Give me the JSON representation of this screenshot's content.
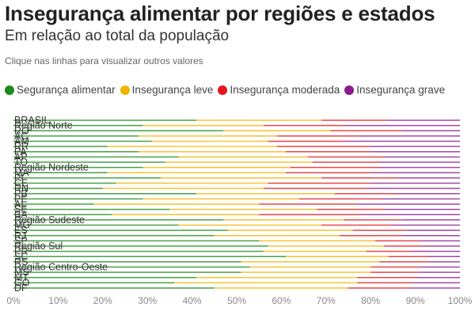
{
  "title": "Insegurança alimentar por regiões e estados",
  "subtitle": "Em relação ao total da população",
  "note": "Clique nas linhas para visualizar outros valores",
  "legend": [
    {
      "label": "Segurança alimentar",
      "color": "#1a8a1a"
    },
    {
      "label": "Insegurança leve",
      "color": "#f2b400"
    },
    {
      "label": "Insegurança moderada",
      "color": "#e4161b"
    },
    {
      "label": "Insegurança grave",
      "color": "#8a1a8e"
    }
  ],
  "chart_data": {
    "type": "bar",
    "stacked": true,
    "orientation": "horizontal",
    "xlim": [
      0,
      100
    ],
    "x_ticks": [
      "0%",
      "10%",
      "20%",
      "30%",
      "40%",
      "50%",
      "60%",
      "70%",
      "80%",
      "90%",
      "100%"
    ],
    "categories": [
      "BRASIL",
      "Região Norte",
      "RO",
      "AC",
      "AM",
      "RR",
      "PA",
      "AP",
      "TO",
      "Região Nordeste",
      "MA",
      "PI",
      "CE",
      "RN",
      "PB",
      "PE",
      "AL",
      "SE",
      "BA",
      "Região Sudeste",
      "MG",
      "ES",
      "RJ",
      "SP",
      "Região Sul",
      "PR",
      "SC",
      "RS",
      "Região Centro-Oeste",
      "MS",
      "MT",
      "GO",
      "DF"
    ],
    "series": [
      {
        "name": "Segurança alimentar",
        "color": "#1a8a1a",
        "values": [
          41,
          29,
          47,
          28,
          31,
          21,
          28,
          37,
          34,
          29,
          21,
          33,
          23,
          20,
          41,
          29,
          18,
          35,
          22,
          47,
          37,
          48,
          45,
          55,
          57,
          56,
          61,
          51,
          53,
          51,
          41,
          36,
          45
        ]
      },
      {
        "name": "Insegurança leve",
        "color": "#f2b400",
        "values": [
          28,
          27,
          24,
          31,
          26,
          38,
          33,
          29,
          33,
          33,
          40,
          36,
          34,
          36,
          31,
          35,
          37,
          33,
          33,
          27,
          32,
          28,
          28,
          26,
          26,
          23,
          23,
          31,
          27,
          29,
          36,
          41,
          30
        ]
      },
      {
        "name": "Insegurança moderada",
        "color": "#e4161b",
        "values": [
          15,
          18,
          16,
          19,
          17,
          21,
          19,
          17,
          15,
          20,
          19,
          17,
          23,
          23,
          14,
          18,
          22,
          15,
          23,
          13,
          16,
          12,
          14,
          10,
          9,
          10,
          9,
          11,
          11,
          11,
          13,
          12,
          14
        ]
      },
      {
        "name": "Insegurança grave",
        "color": "#8a1a8e",
        "values": [
          16,
          26,
          13,
          22,
          26,
          20,
          20,
          17,
          18,
          18,
          20,
          14,
          20,
          21,
          14,
          18,
          23,
          17,
          22,
          13,
          15,
          12,
          13,
          9,
          8,
          11,
          7,
          7,
          9,
          9,
          10,
          11,
          11
        ]
      }
    ]
  }
}
